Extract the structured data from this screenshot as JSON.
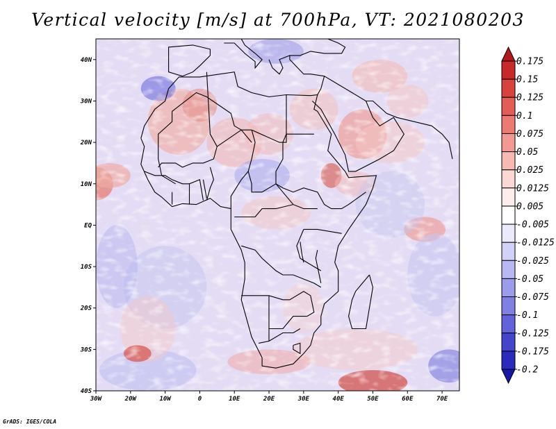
{
  "title": "Vertical velocity [m/s] at 700hPa, VT: 2021080203",
  "credit": "GrADS: IGES/COLA",
  "map": {
    "variable": "Vertical velocity",
    "units": "m/s",
    "level": "700hPa",
    "valid_time": "2021080203",
    "lon_range": [
      -30,
      75
    ],
    "lat_range": [
      -40,
      45
    ],
    "lat_ticks": [
      {
        "value": 40,
        "label": "40N"
      },
      {
        "value": 30,
        "label": "30N"
      },
      {
        "value": 20,
        "label": "20N"
      },
      {
        "value": 10,
        "label": "10N"
      },
      {
        "value": 0,
        "label": "EQ"
      },
      {
        "value": -10,
        "label": "10S"
      },
      {
        "value": -20,
        "label": "20S"
      },
      {
        "value": -30,
        "label": "30S"
      },
      {
        "value": -40,
        "label": "40S"
      }
    ],
    "lon_ticks": [
      {
        "value": -30,
        "label": "30W"
      },
      {
        "value": -20,
        "label": "20W"
      },
      {
        "value": -10,
        "label": "10W"
      },
      {
        "value": 0,
        "label": "0"
      },
      {
        "value": 10,
        "label": "10E"
      },
      {
        "value": 20,
        "label": "20E"
      },
      {
        "value": 30,
        "label": "30E"
      },
      {
        "value": 40,
        "label": "40E"
      },
      {
        "value": 50,
        "label": "50E"
      },
      {
        "value": 60,
        "label": "60E"
      },
      {
        "value": 70,
        "label": "70E"
      }
    ]
  },
  "colorbar": {
    "labels": [
      "0.175",
      "0.15",
      "0.125",
      "0.1",
      "0.075",
      "0.05",
      "0.025",
      "0.0125",
      "0.005",
      "-0.005",
      "-0.0125",
      "-0.025",
      "-0.05",
      "-0.075",
      "-0.1",
      "-0.125",
      "-0.175",
      "-0.2"
    ],
    "colors": [
      "#b4141c",
      "#c8282a",
      "#d8423e",
      "#e35c55",
      "#ec7a72",
      "#f29a92",
      "#f7bab3",
      "#fbd8d3",
      "#fdeeec",
      "#ffffff",
      "#eaeafc",
      "#d2d2f8",
      "#b8b8f2",
      "#9c9cec",
      "#8080e4",
      "#6262da",
      "#4444cc",
      "#2a2abc",
      "#1616a8"
    ]
  }
}
